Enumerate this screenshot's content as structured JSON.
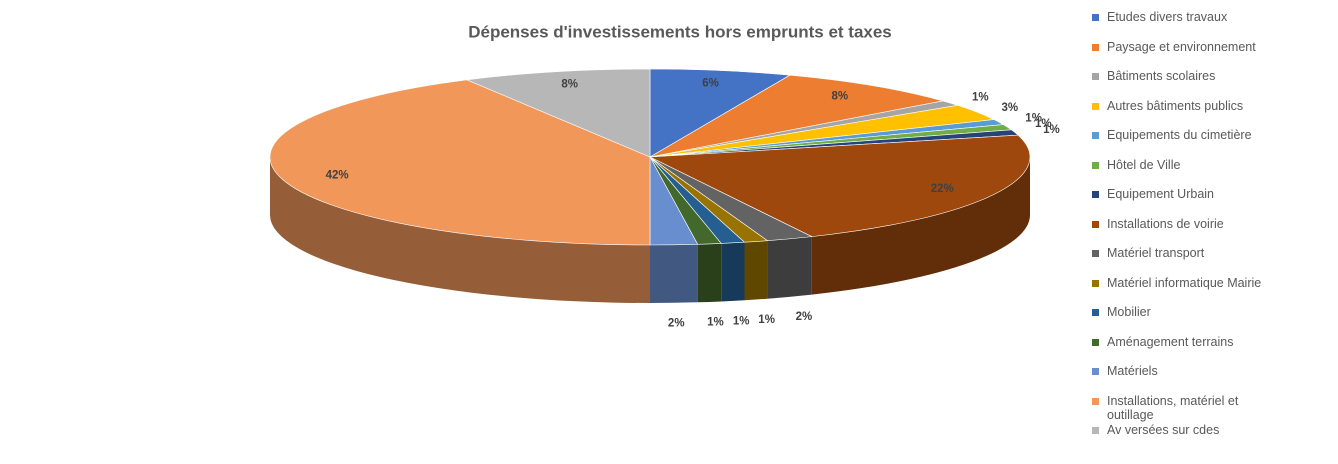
{
  "chart_data": {
    "type": "pie",
    "title": "Dépenses d'investissements hors emprunts et taxes",
    "categories": [
      "Etudes divers travaux",
      "Paysage et environnement",
      "Bâtiments scolaires",
      "Autres bâtiments publics",
      "Equipements du cimetière",
      "Hôtel de Ville",
      "Equipement Urbain",
      "Installations de voirie",
      "Matériel transport",
      "Matériel informatique Mairie",
      "Mobilier",
      "Aménagement terrains",
      "Matériels",
      "Installations, matériel et outillage",
      "Av versées sur cdes"
    ],
    "values": [
      6,
      8,
      1,
      3,
      1,
      1,
      1,
      22,
      2,
      1,
      1,
      1,
      2,
      42,
      8
    ],
    "value_labels": [
      "6%",
      "8%",
      "1%",
      "3%",
      "1%",
      "1%",
      "1%",
      "22%",
      "2%",
      "1%",
      "1%",
      "1%",
      "2%",
      "42%",
      "8%"
    ],
    "colors": [
      "#4472c4",
      "#ed7d31",
      "#a5a5a5",
      "#ffc000",
      "#5b9bd5",
      "#70ad47",
      "#264478",
      "#9e480e",
      "#636363",
      "#997300",
      "#255e91",
      "#43682b",
      "#698ed0",
      "#f1975a",
      "#b7b7b7"
    ],
    "legend": "right"
  }
}
